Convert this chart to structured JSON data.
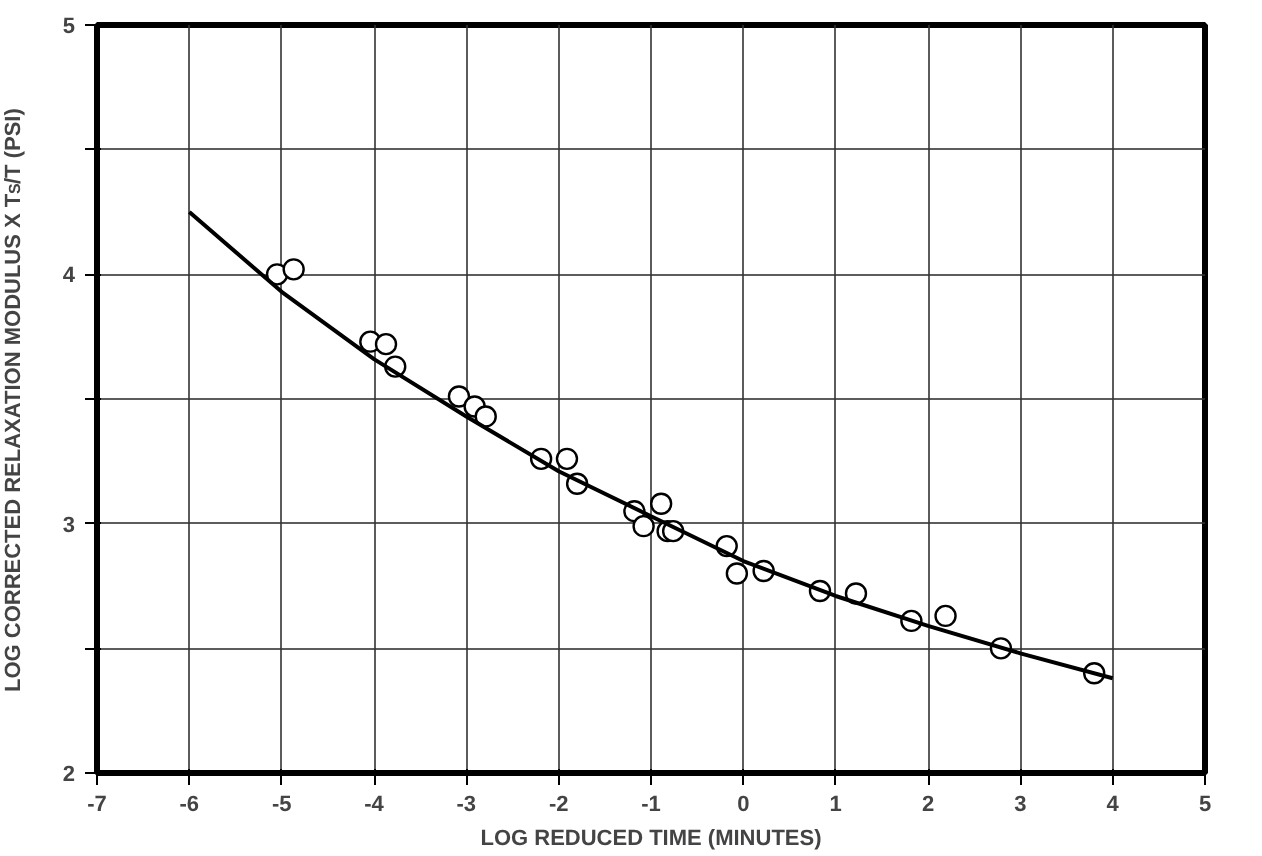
{
  "chart_data": {
    "type": "scatter",
    "xlabel": "LOG REDUCED TIME (MINUTES)",
    "ylabel": "LOG CORRECTED RELAXATION MODULUS X T$_{S}$/T (PSI)",
    "xlim": [
      -7,
      5
    ],
    "ylim": [
      2,
      5
    ],
    "xticks": [
      -7,
      -6,
      -5,
      -4,
      -3,
      -2,
      -1,
      0,
      1,
      2,
      3,
      4,
      5
    ],
    "yticks": [
      2,
      {
        "value": 2.5,
        "label": null
      },
      3,
      {
        "value": 3.5,
        "label": null
      },
      4,
      {
        "value": 4.5,
        "label": null
      },
      5
    ],
    "grid": true,
    "series": [
      {
        "type": "scatter",
        "marker": "circle",
        "color": "#000000",
        "x": [
          -5.05,
          -4.87,
          -4.04,
          -3.87,
          -3.77,
          -3.08,
          -2.91,
          -2.79,
          -2.19,
          -1.91,
          -1.8,
          -1.18,
          -0.89,
          -1.08,
          -0.82,
          -0.76,
          -0.18,
          -0.07,
          0.22,
          0.83,
          1.22,
          1.82,
          2.19,
          2.79,
          3.8
        ],
        "values": [
          4.0,
          4.02,
          3.73,
          3.72,
          3.63,
          3.51,
          3.47,
          3.43,
          3.26,
          3.26,
          3.16,
          3.05,
          3.08,
          2.99,
          2.97,
          2.97,
          2.91,
          2.8,
          2.81,
          2.73,
          2.72,
          2.61,
          2.63,
          2.5,
          2.4
        ]
      },
      {
        "type": "line",
        "marker": "none",
        "line_style": "solid",
        "color": "#000000",
        "x": [
          -6,
          -5,
          -4,
          -3,
          -2,
          -1,
          0,
          1,
          2,
          3,
          4
        ],
        "values": [
          4.25,
          3.93,
          3.66,
          3.43,
          3.21,
          3.03,
          2.85,
          2.71,
          2.59,
          2.48,
          2.38
        ]
      }
    ]
  }
}
